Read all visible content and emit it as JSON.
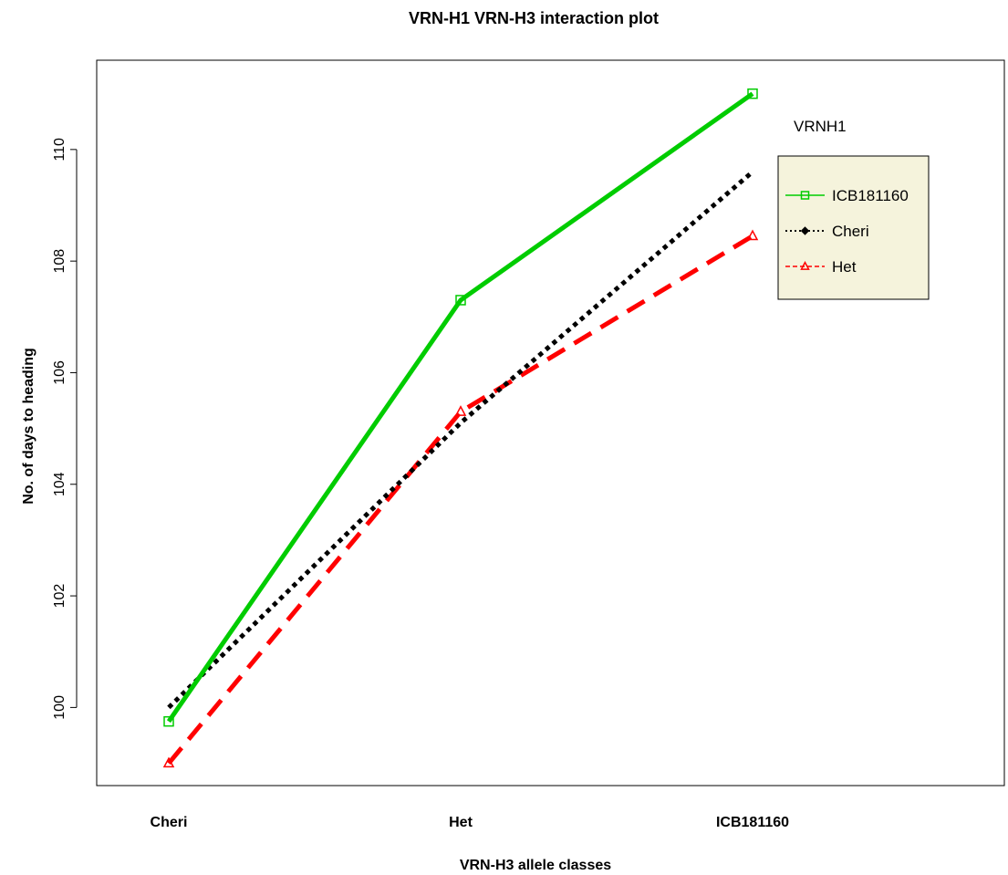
{
  "chart_data": {
    "type": "line",
    "title": "VRN-H1 VRN-H3 interaction plot",
    "xlabel": "VRN-H3 allele classes",
    "ylabel": "No. of days to heading",
    "categories": [
      "Cheri",
      "Het",
      "ICB181160"
    ],
    "yticks": [
      "100",
      "102",
      "104",
      "106",
      "108",
      "110"
    ],
    "ylim": [
      98.6,
      111.6
    ],
    "legend_title": "VRNH1",
    "legend_placement": "right",
    "grid": false,
    "series": [
      {
        "name": "ICB181160",
        "values": [
          99.75,
          107.3,
          111.0
        ],
        "color": "#00cc00",
        "marker": "square",
        "line_style": "solid"
      },
      {
        "name": "Cheri",
        "values": [
          100.0,
          105.1,
          109.6
        ],
        "color": "#000000",
        "marker": "diamond",
        "line_style": "dotted"
      },
      {
        "name": "Het",
        "values": [
          99.0,
          105.3,
          108.45
        ],
        "color": "#ff0000",
        "marker": "triangle",
        "line_style": "dashed"
      }
    ]
  }
}
